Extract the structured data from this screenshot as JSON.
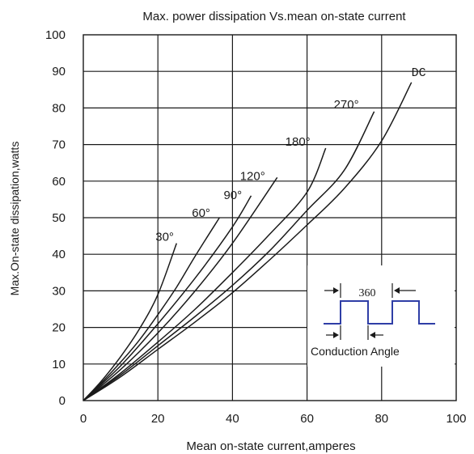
{
  "chart_data": {
    "type": "line",
    "title": "Max. power dissipation Vs.mean on-state current",
    "xlabel": "Mean on-state current,amperes",
    "ylabel": "Max.On-state dissipation,watts",
    "xlim": [
      0,
      100
    ],
    "ylim": [
      0,
      100
    ],
    "x_ticks": [
      "0",
      "20",
      "40",
      "60",
      "80",
      "100"
    ],
    "y_ticks": [
      "0",
      "10",
      "20",
      "30",
      "40",
      "50",
      "60",
      "70",
      "80",
      "90",
      "100"
    ],
    "grid": true,
    "series": [
      {
        "name": "30°",
        "x": [
          0,
          5,
          10,
          15,
          20,
          25
        ],
        "y": [
          0,
          5.5,
          12,
          19.5,
          29,
          43
        ]
      },
      {
        "name": "60°",
        "x": [
          0,
          5,
          10,
          15,
          20,
          25,
          30,
          36.5
        ],
        "y": [
          0,
          5,
          10.5,
          16.5,
          23.5,
          31,
          39.5,
          50
        ]
      },
      {
        "name": "90°",
        "x": [
          0,
          10,
          20,
          30,
          40,
          45
        ],
        "y": [
          0,
          9.5,
          21,
          33.5,
          47.5,
          56
        ]
      },
      {
        "name": "120°",
        "x": [
          0,
          10,
          20,
          30,
          40,
          52
        ],
        "y": [
          0,
          8.5,
          18.5,
          30,
          43,
          61
        ]
      },
      {
        "name": "180°",
        "x": [
          0,
          10,
          20,
          30,
          40,
          50,
          60,
          65
        ],
        "y": [
          0,
          7.5,
          16,
          25,
          35,
          45.5,
          57,
          69
        ]
      },
      {
        "name": "270°",
        "x": [
          0,
          10,
          20,
          30,
          40,
          50,
          60,
          70,
          78
        ],
        "y": [
          0,
          7,
          15,
          23,
          31.5,
          41,
          52,
          63,
          79
        ]
      },
      {
        "name": "DC",
        "x": [
          0,
          10,
          20,
          30,
          40,
          50,
          60,
          70,
          80,
          88
        ],
        "y": [
          0,
          6.5,
          14,
          21.5,
          29.5,
          38.5,
          48,
          58,
          71,
          87
        ]
      }
    ],
    "inset": {
      "label_top": "360",
      "label_bottom": "Conduction Angle"
    }
  }
}
